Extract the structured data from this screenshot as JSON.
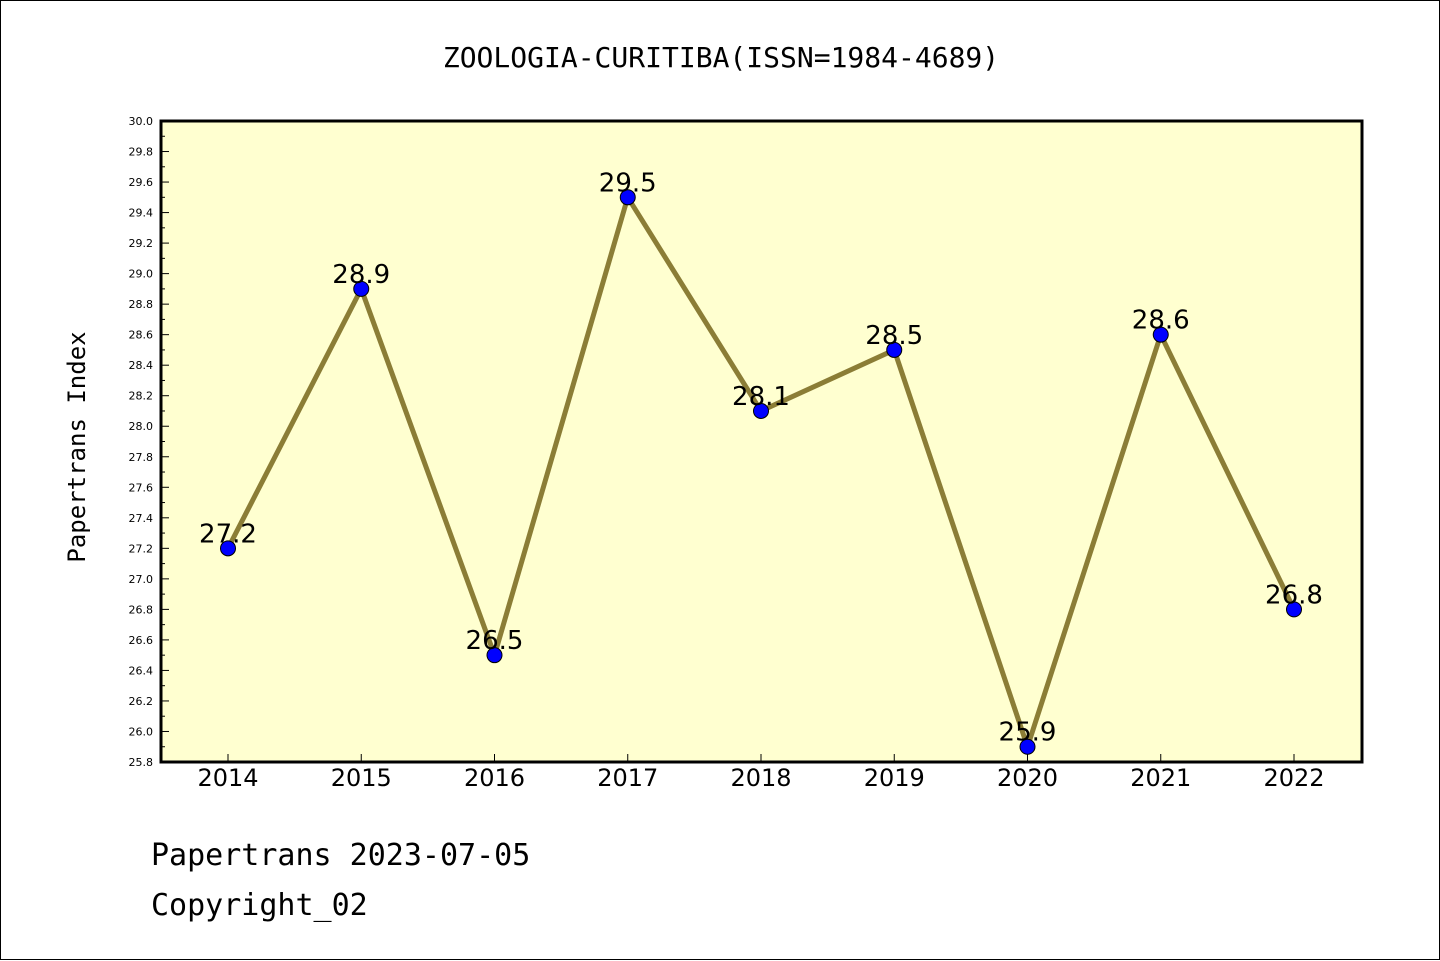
{
  "chart_data": {
    "type": "line",
    "title": "ZOOLOGIA-CURITIBA(ISSN=1984-4689)",
    "xlabel": "",
    "ylabel": "Papertrans Index",
    "categories": [
      "2014",
      "2015",
      "2016",
      "2017",
      "2018",
      "2019",
      "2020",
      "2021",
      "2022"
    ],
    "series": [
      {
        "values": [
          27.2,
          28.9,
          26.5,
          29.5,
          28.1,
          28.5,
          25.9,
          28.6,
          26.8
        ],
        "labels": [
          "27.2",
          "28.9",
          "26.5",
          "29.5",
          "28.1",
          "28.5",
          "25.9",
          "28.6",
          "26.8"
        ]
      }
    ],
    "ylim": [
      25.8,
      30.0
    ],
    "yticks": [
      "25.8",
      "26.0",
      "26.2",
      "26.4",
      "26.6",
      "26.8",
      "27.0",
      "27.2",
      "27.4",
      "27.6",
      "27.8",
      "28.0",
      "28.2",
      "28.4",
      "28.6",
      "28.8",
      "29.0",
      "29.2",
      "29.4",
      "29.6",
      "29.8",
      "30.0"
    ],
    "grid": false,
    "legend": "none",
    "colors": {
      "plot_background": "#ffffd0",
      "line": "#8b7d36",
      "marker": "#0000ff"
    }
  },
  "footer": {
    "line1": "Papertrans 2023-07-05",
    "line2": "Copyright_02"
  }
}
